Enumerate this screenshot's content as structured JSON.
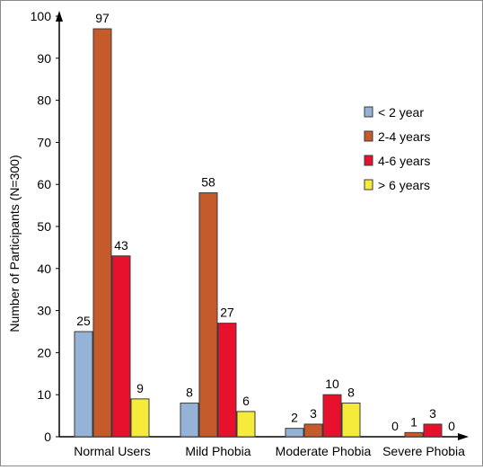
{
  "chart_data": {
    "type": "bar",
    "title": "",
    "xlabel": "",
    "ylabel": "Number of Participants (N=300)",
    "ylim": [
      0,
      100
    ],
    "yticks": [
      0,
      10,
      20,
      30,
      40,
      50,
      60,
      70,
      80,
      90,
      100
    ],
    "grid": false,
    "legend_position": "right",
    "categories": [
      "Normal Users",
      "Mild Phobia",
      "Moderate Phobia",
      "Severe Phobia"
    ],
    "series": [
      {
        "name": "< 2 year",
        "color": "#95b3d7",
        "values": [
          25,
          8,
          2,
          0
        ]
      },
      {
        "name": "2-4 years",
        "color": "#c55a2a",
        "values": [
          97,
          58,
          3,
          1
        ]
      },
      {
        "name": "4-6 years",
        "color": "#e8112d",
        "values": [
          43,
          27,
          10,
          3
        ]
      },
      {
        "name": "> 6 years",
        "color": "#f5eb3b",
        "values": [
          9,
          6,
          8,
          0
        ]
      }
    ]
  }
}
